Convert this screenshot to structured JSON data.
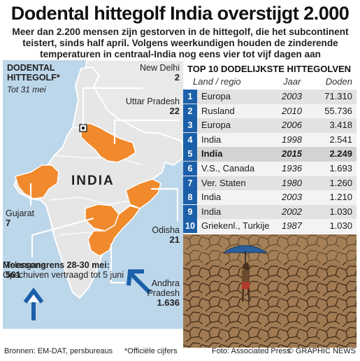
{
  "header": {
    "title": "Dodental hittegolf India overstijgt 2.000",
    "subtitle": "Meer dan 2.200 mensen zijn gestorven in de hittegolf, die het subcontinent teistert, sinds half april. Volgens weerkundigen houden de zinderende temperaturen in centraal-India nog eens vier tot vijf dagen aan"
  },
  "map": {
    "heading_line1": "DODENTAL",
    "heading_line2": "HITTEGOLF*",
    "date": "Tot 31 mei",
    "country": "INDIA",
    "regions": [
      {
        "name": "New Delhi",
        "count": "2"
      },
      {
        "name": "Uttar Pradesh",
        "count": "22"
      },
      {
        "name": "Gujarat",
        "count": "7"
      },
      {
        "name": "Odisha",
        "count": "21"
      },
      {
        "name": "Telangana",
        "count": "561"
      },
      {
        "name": "Andhra Pradesh",
        "name_line1": "Andhra",
        "name_line2": "Pradesh",
        "count": "1.636"
      }
    ],
    "monsoon_title": "Moessongrens 28-30 mei:",
    "monsoon_note": "Opschuiven vertraagd tot 5 juni",
    "colors": {
      "sea": "#bcd6ea",
      "land": "#e6e6e6",
      "affected": "#f08a2c",
      "arrow": "#1c60aa"
    }
  },
  "table": {
    "title": "TOP 10 DODELIJKSTE HITTEGOLVEN",
    "columns": [
      "Land / regio",
      "Jaar",
      "Doden"
    ],
    "rows": [
      {
        "rank": "1",
        "land": "Europa",
        "jaar": "2003",
        "doden": "71.310"
      },
      {
        "rank": "2",
        "land": "Rusland",
        "jaar": "2010",
        "doden": "55.736"
      },
      {
        "rank": "3",
        "land": "Europa",
        "jaar": "2006",
        "doden": "3.418"
      },
      {
        "rank": "4",
        "land": "India",
        "jaar": "1998",
        "doden": "2.541"
      },
      {
        "rank": "5",
        "land": "India",
        "jaar": "2015",
        "doden": "2.249",
        "highlight": true
      },
      {
        "rank": "6",
        "land": "V.S., Canada",
        "jaar": "1936",
        "doden": "1.693"
      },
      {
        "rank": "7",
        "land": "Ver. Staten",
        "jaar": "1980",
        "doden": "1.260"
      },
      {
        "rank": "8",
        "land": "India",
        "jaar": "2003",
        "doden": "1.210"
      },
      {
        "rank": "9",
        "land": "India",
        "jaar": "2002",
        "doden": "1.030"
      },
      {
        "rank": "10",
        "land": "Griekenl., Turkije",
        "jaar": "1987",
        "doden": "1.030"
      }
    ],
    "rank_color": "#1c60aa"
  },
  "watermark": "GRAPHIC NEWS",
  "footer": {
    "sources": "Bronnen: EM-DAT, persbureaus",
    "official": "*Officiële cijfers",
    "photo": "Foto: Associated Press",
    "credit": "© GRAPHIC NEWS"
  }
}
